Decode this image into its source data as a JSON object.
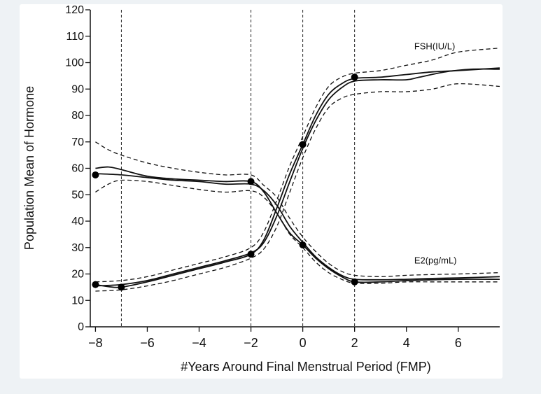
{
  "chart_data": {
    "type": "line",
    "title": "",
    "xlabel": "#Years Around Final Menstrual Period (FMP)",
    "ylabel": "Population Mean of Hormone",
    "xlim": [
      -8.2,
      7.6
    ],
    "ylim": [
      0,
      120
    ],
    "xticks": [
      -8,
      -6,
      -4,
      -2,
      0,
      2,
      4,
      6
    ],
    "xtick_labels": [
      "−8",
      "−6",
      "−4",
      "−2",
      "0",
      "2",
      "4",
      "6"
    ],
    "yticks": [
      0,
      10,
      20,
      30,
      40,
      50,
      60,
      70,
      80,
      90,
      100,
      110,
      120
    ],
    "vlines": [
      -7,
      -2,
      0,
      2
    ],
    "grid": false,
    "series": [
      {
        "name": "FSH(IU/L)",
        "line": [
          [
            -8.0,
            16
          ],
          [
            -7.5,
            15.2
          ],
          [
            -7.0,
            15
          ],
          [
            -6.0,
            17
          ],
          [
            -5.0,
            19.5
          ],
          [
            -4.0,
            22
          ],
          [
            -3.0,
            24.5
          ],
          [
            -2.0,
            27.5
          ],
          [
            -1.5,
            33
          ],
          [
            -1.0,
            45
          ],
          [
            -0.5,
            58
          ],
          [
            0.0,
            69
          ],
          [
            0.5,
            80
          ],
          [
            1.0,
            88
          ],
          [
            1.5,
            92
          ],
          [
            2.0,
            94
          ],
          [
            3.0,
            94.5
          ],
          [
            4.0,
            95.5
          ],
          [
            5.0,
            96.5
          ],
          [
            6.0,
            97
          ],
          [
            7.6,
            98
          ]
        ],
        "smooth": [
          [
            -8.0,
            15.5
          ],
          [
            -7.0,
            16
          ],
          [
            -6.0,
            17.5
          ],
          [
            -5.0,
            20
          ],
          [
            -4.0,
            22.5
          ],
          [
            -3.0,
            25
          ],
          [
            -2.0,
            28
          ],
          [
            -1.5,
            32
          ],
          [
            -1.0,
            42
          ],
          [
            -0.5,
            55
          ],
          [
            0.0,
            67.5
          ],
          [
            0.5,
            78
          ],
          [
            1.0,
            86
          ],
          [
            1.5,
            90.5
          ],
          [
            2.0,
            93
          ],
          [
            3.0,
            93.5
          ],
          [
            4.0,
            93.5
          ],
          [
            4.5,
            94.5
          ],
          [
            5.5,
            96.5
          ],
          [
            6.5,
            97.5
          ],
          [
            7.6,
            97.5
          ]
        ],
        "ci_upper": [
          [
            -8.0,
            17
          ],
          [
            -7.0,
            17.5
          ],
          [
            -6.0,
            19
          ],
          [
            -5.0,
            21.5
          ],
          [
            -4.0,
            24
          ],
          [
            -3.0,
            26.5
          ],
          [
            -2.0,
            30
          ],
          [
            -1.5,
            36
          ],
          [
            -1.0,
            48
          ],
          [
            -0.5,
            61
          ],
          [
            0.0,
            72
          ],
          [
            0.5,
            83
          ],
          [
            1.0,
            91
          ],
          [
            1.5,
            94.5
          ],
          [
            2.0,
            96
          ],
          [
            3.0,
            97
          ],
          [
            4.0,
            99
          ],
          [
            5.0,
            101
          ],
          [
            6.0,
            104
          ],
          [
            7.6,
            105.5
          ]
        ],
        "ci_lower": [
          [
            -8.0,
            13.5
          ],
          [
            -7.0,
            14
          ],
          [
            -6.0,
            15.5
          ],
          [
            -5.0,
            17.5
          ],
          [
            -4.0,
            20
          ],
          [
            -3.0,
            22.5
          ],
          [
            -2.0,
            26
          ],
          [
            -1.5,
            29.5
          ],
          [
            -1.0,
            38
          ],
          [
            -0.5,
            51
          ],
          [
            0.0,
            64
          ],
          [
            0.5,
            75
          ],
          [
            1.0,
            83
          ],
          [
            1.5,
            86.5
          ],
          [
            2.0,
            88
          ],
          [
            3.0,
            89
          ],
          [
            4.0,
            89
          ],
          [
            5.0,
            90
          ],
          [
            6.0,
            92
          ],
          [
            7.6,
            91
          ]
        ],
        "markers": [
          [
            -8,
            16
          ],
          [
            -7,
            15
          ],
          [
            -2,
            27.5
          ],
          [
            0,
            69
          ],
          [
            2,
            94.5
          ]
        ]
      },
      {
        "name": "E2(pg/mL)",
        "line": [
          [
            -8.0,
            60
          ],
          [
            -7.5,
            60.5
          ],
          [
            -7.0,
            59.5
          ],
          [
            -6.0,
            57
          ],
          [
            -5.0,
            56
          ],
          [
            -4.0,
            55.5
          ],
          [
            -3.0,
            55
          ],
          [
            -2.0,
            55
          ],
          [
            -1.5,
            51
          ],
          [
            -1.0,
            43
          ],
          [
            -0.5,
            35.5
          ],
          [
            0.0,
            31
          ],
          [
            0.5,
            26
          ],
          [
            1.0,
            22
          ],
          [
            1.5,
            19
          ],
          [
            2.0,
            17
          ],
          [
            3.0,
            17
          ],
          [
            4.0,
            17.5
          ],
          [
            5.0,
            17.8
          ],
          [
            6.0,
            18
          ],
          [
            7.6,
            18
          ]
        ],
        "smooth": [
          [
            -8.0,
            58
          ],
          [
            -7.0,
            57.5
          ],
          [
            -6.0,
            56.5
          ],
          [
            -5.0,
            55.5
          ],
          [
            -4.0,
            55
          ],
          [
            -3.0,
            54
          ],
          [
            -2.0,
            54
          ],
          [
            -1.5,
            51.5
          ],
          [
            -1.0,
            46
          ],
          [
            -0.5,
            38
          ],
          [
            0.0,
            32
          ],
          [
            0.5,
            26.5
          ],
          [
            1.0,
            22.5
          ],
          [
            1.5,
            19.5
          ],
          [
            2.0,
            18
          ],
          [
            3.0,
            17.8
          ],
          [
            4.0,
            18
          ],
          [
            5.0,
            18.3
          ],
          [
            6.0,
            18.5
          ],
          [
            7.6,
            19
          ]
        ],
        "ci_upper": [
          [
            -8.0,
            70
          ],
          [
            -7.5,
            67
          ],
          [
            -7.0,
            65
          ],
          [
            -6.0,
            62
          ],
          [
            -5.0,
            60
          ],
          [
            -4.0,
            58.5
          ],
          [
            -3.0,
            57.5
          ],
          [
            -2.0,
            57.5
          ],
          [
            -1.5,
            53.5
          ],
          [
            -1.0,
            49
          ],
          [
            -0.5,
            41
          ],
          [
            0.0,
            34
          ],
          [
            0.5,
            28.5
          ],
          [
            1.0,
            24
          ],
          [
            1.5,
            21
          ],
          [
            2.0,
            19.5
          ],
          [
            3.0,
            19
          ],
          [
            4.0,
            19.5
          ],
          [
            5.0,
            19.8
          ],
          [
            6.0,
            20
          ],
          [
            7.6,
            20.5
          ]
        ],
        "ci_lower": [
          [
            -8.0,
            51
          ],
          [
            -7.5,
            54
          ],
          [
            -7.0,
            55.5
          ],
          [
            -6.0,
            55
          ],
          [
            -5.0,
            53.5
          ],
          [
            -4.0,
            52
          ],
          [
            -3.0,
            51
          ],
          [
            -2.0,
            51.5
          ],
          [
            -1.5,
            49
          ],
          [
            -1.0,
            43
          ],
          [
            -0.5,
            35
          ],
          [
            0.0,
            30
          ],
          [
            0.5,
            24.5
          ],
          [
            1.0,
            20.5
          ],
          [
            1.5,
            18
          ],
          [
            2.0,
            16.5
          ],
          [
            3.0,
            16.5
          ],
          [
            4.0,
            17
          ],
          [
            5.0,
            17
          ],
          [
            6.0,
            17
          ],
          [
            7.6,
            17
          ]
        ],
        "markers": [
          [
            -8,
            57.5
          ],
          [
            -2,
            55
          ],
          [
            0,
            31
          ],
          [
            2,
            17
          ]
        ]
      }
    ],
    "annotations": [
      {
        "text": "FSH(IU/L)",
        "x": 4.3,
        "y": 105
      },
      {
        "text": "E2(pg/mL)",
        "x": 4.3,
        "y": 24
      }
    ]
  }
}
